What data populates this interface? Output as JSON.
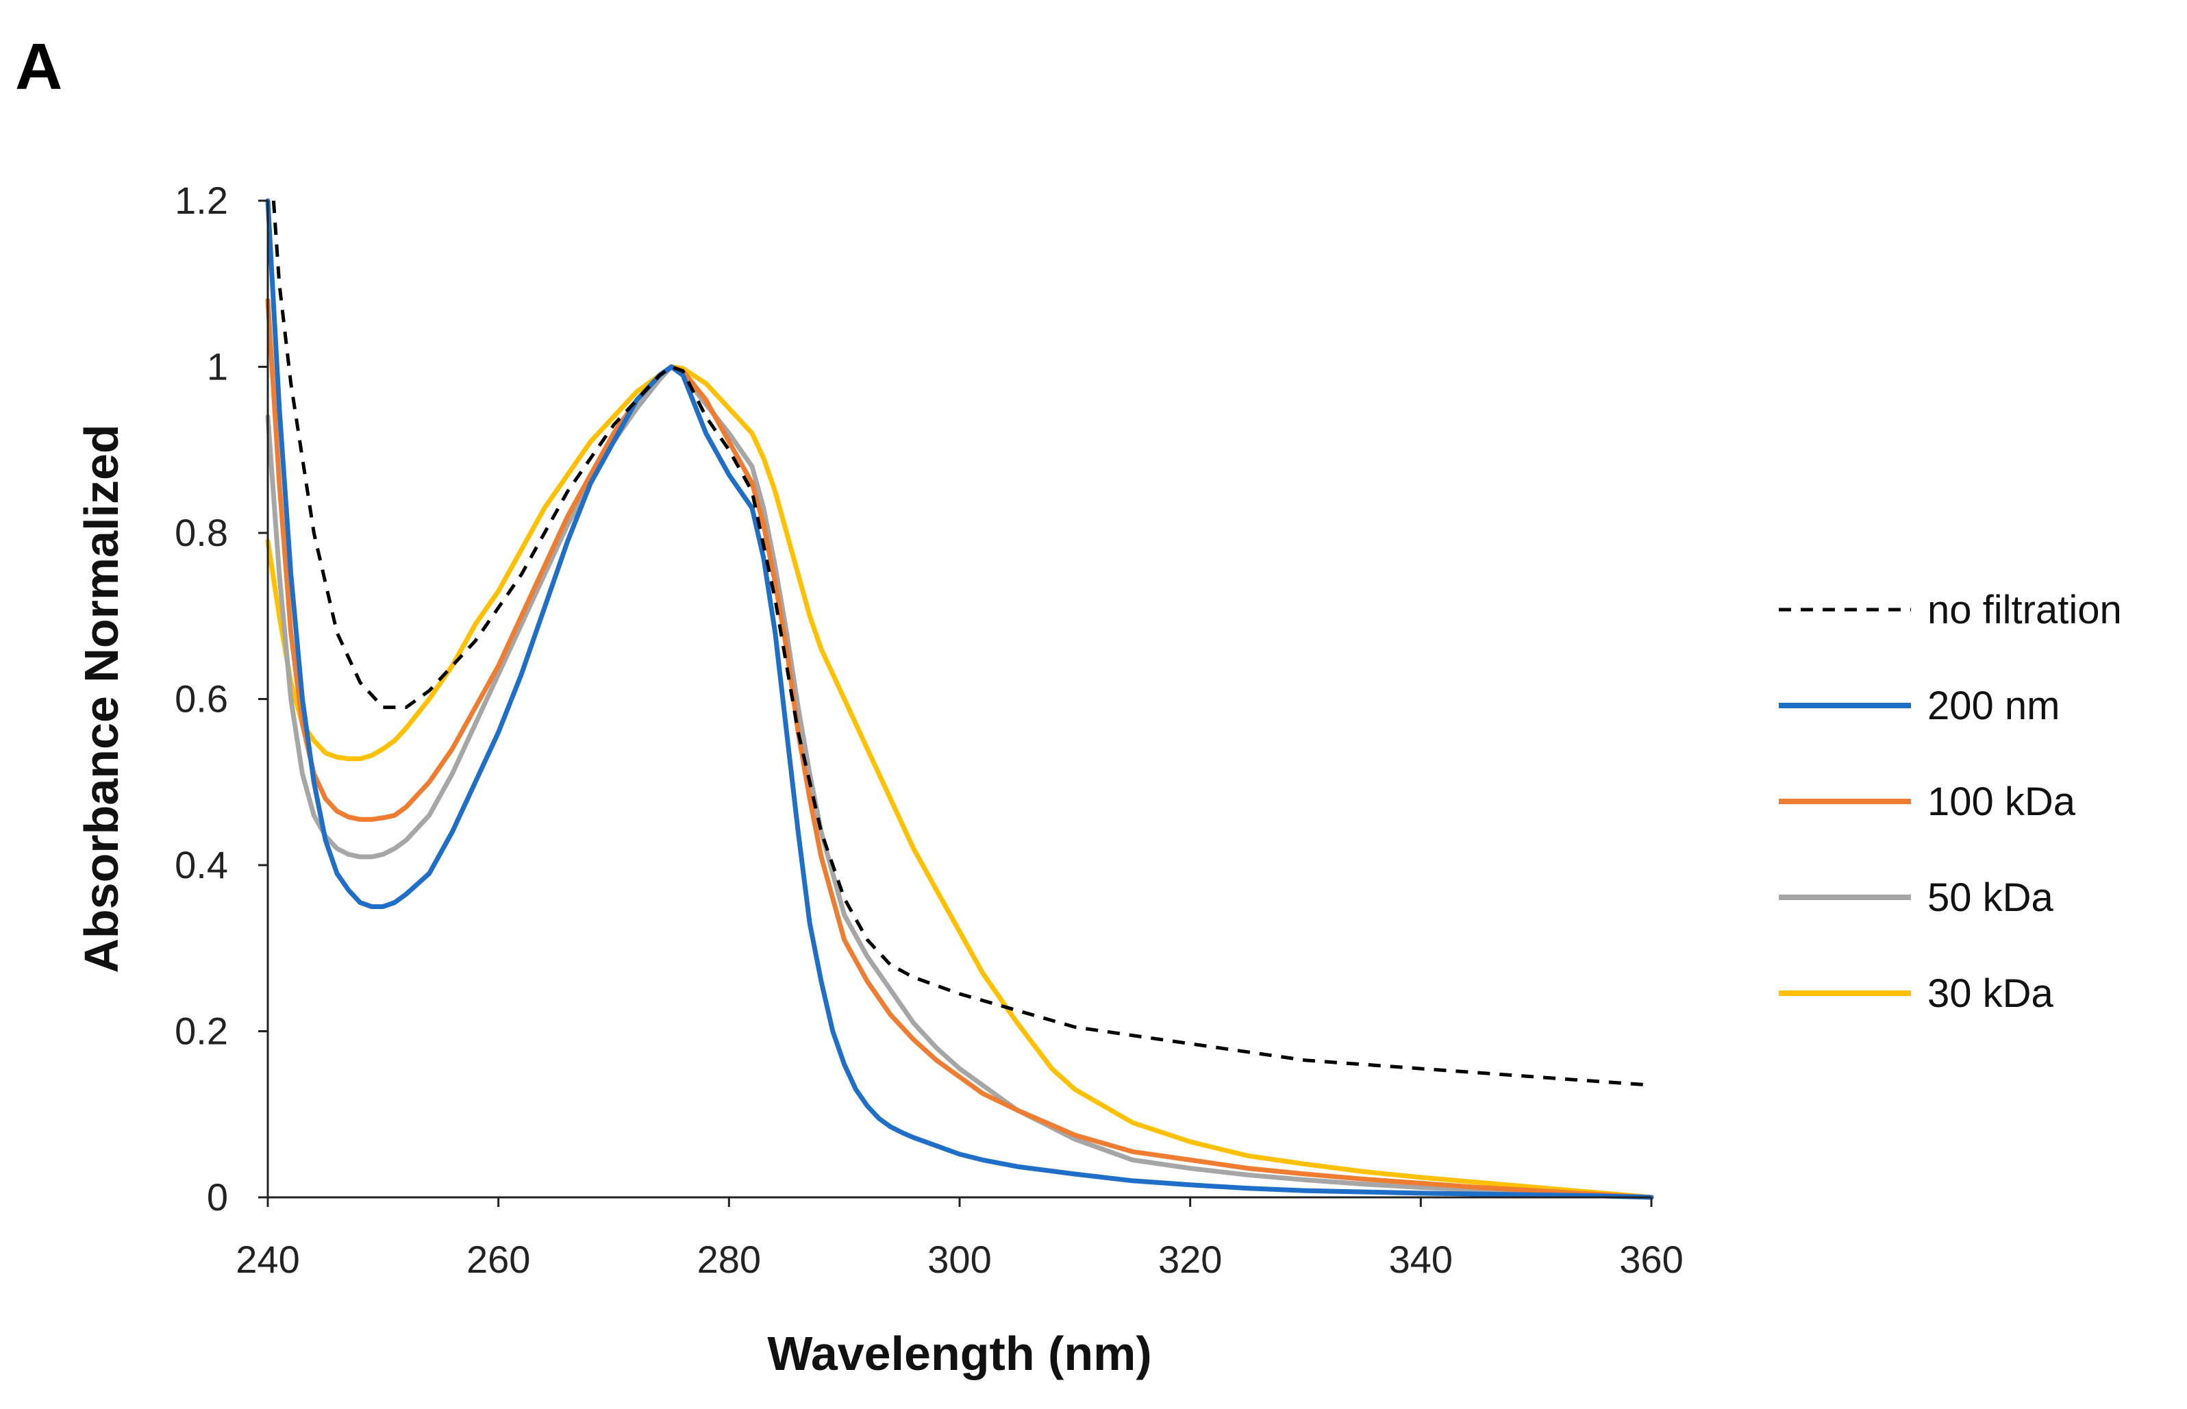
{
  "panel_label": "A",
  "chart_data": {
    "type": "line",
    "title": "",
    "xlabel": "Wavelength (nm)",
    "ylabel": "Absorbance  Normalized",
    "xlim": [
      240,
      360
    ],
    "ylim": [
      0,
      1.2
    ],
    "xticks": [
      240,
      260,
      280,
      300,
      320,
      340,
      360
    ],
    "yticks": [
      0,
      0.2,
      0.4,
      0.6,
      0.8,
      1,
      1.2
    ],
    "xtick_labels": [
      "240",
      "260",
      "280",
      "300",
      "320",
      "340",
      "360"
    ],
    "ytick_labels": [
      "0",
      "0.2",
      "0.4",
      "0.6",
      "0.8",
      "1",
      "1.2"
    ],
    "grid": false,
    "legend_position": "right",
    "series": [
      {
        "name": "no filtration",
        "color": "#000000",
        "dash": true,
        "x": [
          240.5,
          241,
          242,
          244,
          246,
          248,
          250,
          252,
          254,
          256,
          258,
          260,
          262,
          264,
          266,
          268,
          270,
          272,
          274,
          275,
          276,
          278,
          280,
          282,
          284,
          286,
          288,
          290,
          292,
          294,
          296,
          298,
          300,
          305,
          310,
          315,
          320,
          325,
          330,
          335,
          340,
          345,
          350,
          355,
          360
        ],
        "y": [
          1.2,
          1.1,
          0.98,
          0.8,
          0.68,
          0.62,
          0.59,
          0.59,
          0.61,
          0.64,
          0.67,
          0.71,
          0.75,
          0.8,
          0.85,
          0.89,
          0.93,
          0.96,
          0.99,
          1.0,
          0.995,
          0.94,
          0.9,
          0.85,
          0.72,
          0.56,
          0.44,
          0.36,
          0.31,
          0.28,
          0.265,
          0.255,
          0.245,
          0.225,
          0.205,
          0.195,
          0.185,
          0.175,
          0.165,
          0.16,
          0.155,
          0.15,
          0.145,
          0.14,
          0.135
        ]
      },
      {
        "name": "200 nm",
        "color": "#1f6fc8",
        "dash": false,
        "x": [
          240,
          241,
          242,
          243,
          244,
          245,
          246,
          247,
          248,
          249,
          250,
          251,
          252,
          254,
          256,
          258,
          260,
          262,
          264,
          266,
          268,
          270,
          272,
          274,
          275,
          276,
          278,
          280,
          282,
          283,
          284,
          285,
          286,
          287,
          288,
          289,
          290,
          291,
          292,
          293,
          294,
          295,
          296,
          298,
          300,
          302,
          305,
          310,
          315,
          320,
          325,
          330,
          340,
          350,
          355,
          360
        ],
        "y": [
          1.2,
          0.95,
          0.75,
          0.6,
          0.5,
          0.43,
          0.39,
          0.37,
          0.355,
          0.35,
          0.35,
          0.355,
          0.365,
          0.39,
          0.44,
          0.5,
          0.56,
          0.63,
          0.71,
          0.79,
          0.86,
          0.91,
          0.96,
          0.99,
          1.0,
          0.99,
          0.92,
          0.87,
          0.83,
          0.77,
          0.68,
          0.56,
          0.44,
          0.33,
          0.26,
          0.2,
          0.16,
          0.13,
          0.11,
          0.095,
          0.085,
          0.078,
          0.072,
          0.062,
          0.052,
          0.045,
          0.037,
          0.028,
          0.02,
          0.015,
          0.011,
          0.008,
          0.005,
          0.003,
          0.002,
          0.0
        ]
      },
      {
        "name": "100 kDa",
        "color": "#ef7d31",
        "dash": false,
        "x": [
          240,
          241,
          242,
          243,
          244,
          245,
          246,
          247,
          248,
          249,
          250,
          251,
          252,
          254,
          256,
          258,
          260,
          262,
          264,
          266,
          268,
          270,
          272,
          274,
          275,
          276,
          278,
          280,
          282,
          283,
          284,
          285,
          286,
          287,
          288,
          289,
          290,
          292,
          294,
          296,
          298,
          300,
          302,
          305,
          310,
          315,
          320,
          325,
          330,
          335,
          340,
          345,
          350,
          355,
          360
        ],
        "y": [
          1.08,
          0.86,
          0.68,
          0.57,
          0.51,
          0.48,
          0.465,
          0.458,
          0.455,
          0.455,
          0.457,
          0.46,
          0.47,
          0.5,
          0.54,
          0.59,
          0.64,
          0.7,
          0.76,
          0.82,
          0.87,
          0.92,
          0.96,
          0.99,
          1.0,
          0.995,
          0.96,
          0.91,
          0.86,
          0.81,
          0.74,
          0.66,
          0.56,
          0.48,
          0.41,
          0.36,
          0.31,
          0.26,
          0.22,
          0.19,
          0.165,
          0.145,
          0.125,
          0.105,
          0.075,
          0.055,
          0.045,
          0.035,
          0.028,
          0.022,
          0.017,
          0.012,
          0.008,
          0.004,
          0.0
        ]
      },
      {
        "name": "50 kDa",
        "color": "#a6a6a6",
        "dash": false,
        "x": [
          240,
          241,
          242,
          243,
          244,
          245,
          246,
          247,
          248,
          249,
          250,
          251,
          252,
          254,
          256,
          258,
          260,
          262,
          264,
          266,
          268,
          270,
          272,
          274,
          275,
          276,
          278,
          280,
          282,
          283,
          284,
          285,
          286,
          287,
          288,
          289,
          290,
          292,
          294,
          296,
          298,
          300,
          302,
          305,
          310,
          315,
          320,
          325,
          330,
          335,
          340,
          345,
          350,
          355,
          360
        ],
        "y": [
          0.94,
          0.75,
          0.6,
          0.51,
          0.46,
          0.435,
          0.42,
          0.413,
          0.41,
          0.41,
          0.413,
          0.42,
          0.43,
          0.46,
          0.51,
          0.57,
          0.63,
          0.69,
          0.75,
          0.81,
          0.86,
          0.91,
          0.95,
          0.985,
          1.0,
          0.99,
          0.955,
          0.92,
          0.88,
          0.83,
          0.76,
          0.68,
          0.59,
          0.51,
          0.44,
          0.39,
          0.34,
          0.29,
          0.25,
          0.21,
          0.18,
          0.155,
          0.135,
          0.105,
          0.07,
          0.045,
          0.035,
          0.027,
          0.021,
          0.016,
          0.012,
          0.009,
          0.006,
          0.003,
          0.0
        ]
      },
      {
        "name": "30 kDa",
        "color": "#ffc000",
        "dash": false,
        "x": [
          240,
          241,
          242,
          243,
          244,
          245,
          246,
          247,
          248,
          249,
          250,
          251,
          252,
          254,
          256,
          258,
          260,
          262,
          264,
          266,
          268,
          270,
          272,
          274,
          275,
          276,
          278,
          280,
          282,
          283,
          284,
          285,
          286,
          287,
          288,
          290,
          292,
          294,
          296,
          298,
          300,
          302,
          305,
          308,
          310,
          315,
          320,
          325,
          330,
          335,
          340,
          345,
          350,
          355,
          360
        ],
        "y": [
          0.79,
          0.7,
          0.62,
          0.57,
          0.55,
          0.535,
          0.53,
          0.528,
          0.528,
          0.532,
          0.54,
          0.55,
          0.565,
          0.6,
          0.64,
          0.69,
          0.73,
          0.78,
          0.83,
          0.87,
          0.91,
          0.94,
          0.97,
          0.99,
          1.0,
          0.998,
          0.98,
          0.95,
          0.92,
          0.89,
          0.85,
          0.8,
          0.75,
          0.7,
          0.66,
          0.6,
          0.54,
          0.48,
          0.42,
          0.37,
          0.32,
          0.27,
          0.21,
          0.155,
          0.13,
          0.09,
          0.067,
          0.05,
          0.04,
          0.031,
          0.024,
          0.018,
          0.012,
          0.006,
          0.0
        ]
      }
    ]
  }
}
